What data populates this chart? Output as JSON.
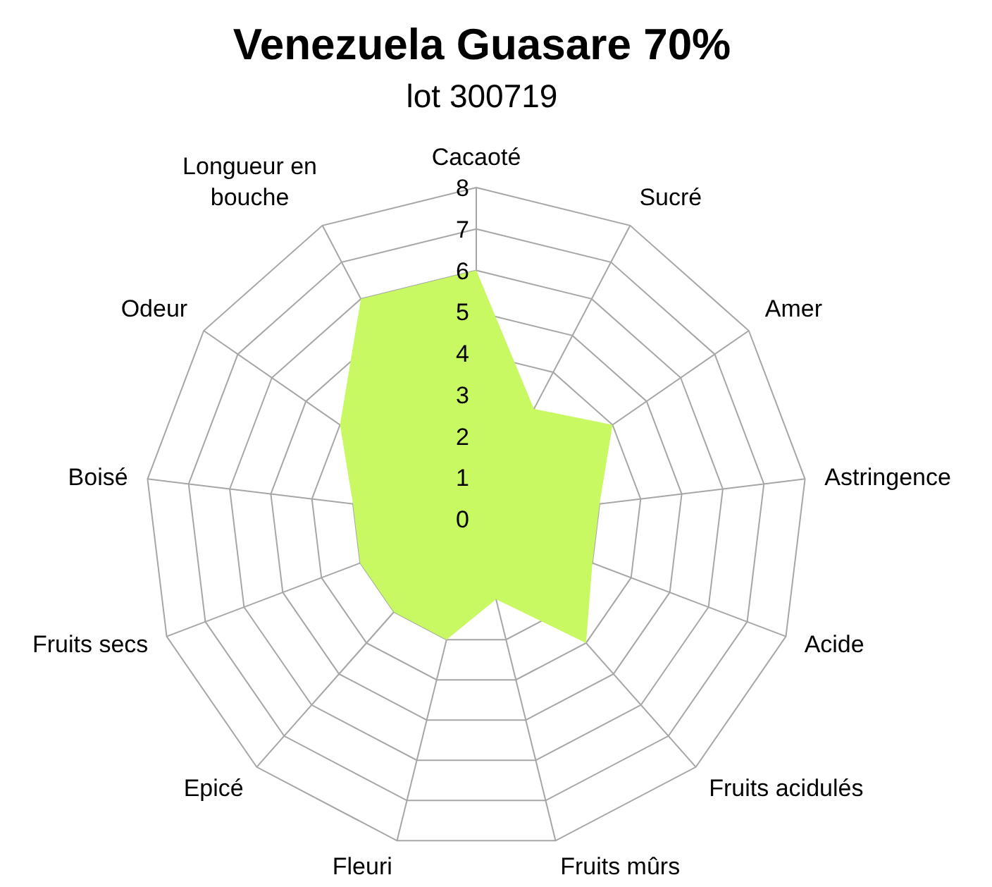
{
  "chart_data": {
    "type": "radar",
    "title": "Venezuela Guasare 70%",
    "subtitle": "lot 300719",
    "categories": [
      "Cacaoté",
      "Sucré",
      "Amer",
      "Astringence",
      "Acide",
      "Fruits acidulés",
      "Fruits mûrs",
      "Fleuri",
      "Epicé",
      "Fruits secs",
      "Boisé",
      "Odeur",
      "Longueur en bouche"
    ],
    "series": [
      {
        "color": "#c8f862",
        "values": [
          6,
          3,
          4,
          3,
          3,
          4,
          2,
          3,
          3,
          3,
          3,
          4,
          6
        ]
      }
    ],
    "ylim": [
      0,
      8
    ],
    "yticks": [
      0,
      1,
      2,
      3,
      4,
      5,
      6,
      7,
      8
    ],
    "grid": true
  }
}
